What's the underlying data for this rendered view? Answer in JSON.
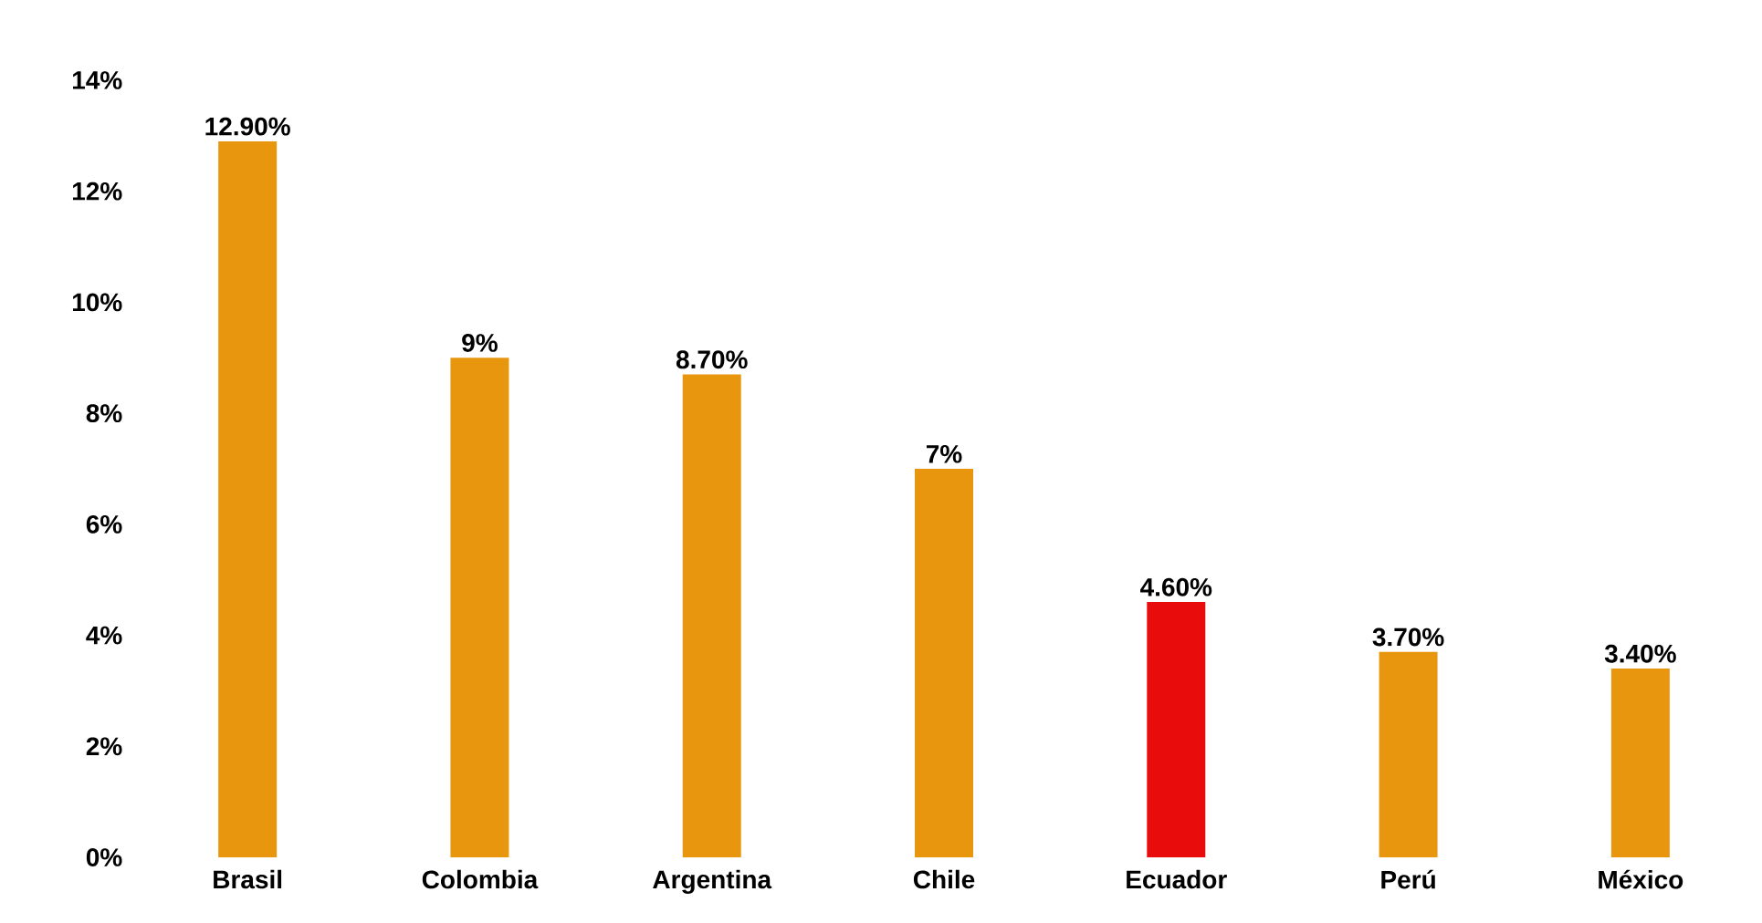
{
  "chart_data": {
    "type": "bar",
    "categories": [
      "Brasil",
      "Colombia",
      "Argentina",
      "Chile",
      "Ecuador",
      "Perú",
      "México"
    ],
    "values": [
      12.9,
      9,
      8.7,
      7,
      4.6,
      3.7,
      3.4
    ],
    "value_labels": [
      "12.90%",
      "9%",
      "8.70%",
      "7%",
      "4.60%",
      "3.70%",
      "3.40%"
    ],
    "colors": [
      "#e8960e",
      "#e8960e",
      "#e8960e",
      "#e8960e",
      "#e80c0c",
      "#e8960e",
      "#e8960e"
    ],
    "ylim": [
      0,
      14
    ],
    "yticks": [
      {
        "value": 0,
        "label": "0%"
      },
      {
        "value": 2,
        "label": "2%"
      },
      {
        "value": 4,
        "label": "4%"
      },
      {
        "value": 6,
        "label": "6%"
      },
      {
        "value": 8,
        "label": "8%"
      },
      {
        "value": 10,
        "label": "10%"
      },
      {
        "value": 12,
        "label": "12%"
      },
      {
        "value": 14,
        "label": "14%"
      }
    ],
    "grid": false
  }
}
